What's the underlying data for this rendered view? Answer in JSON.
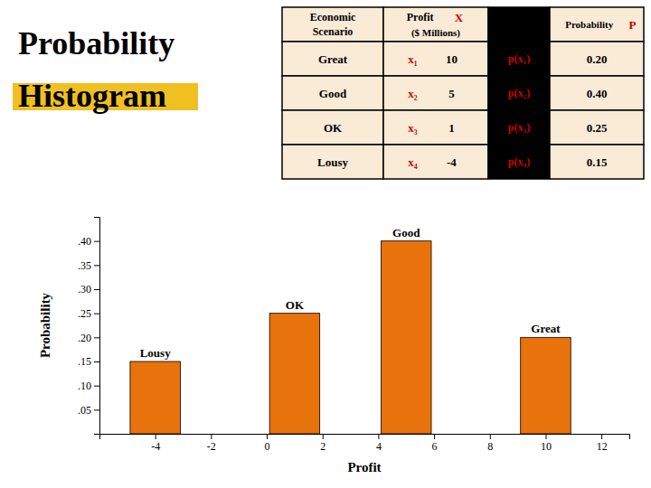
{
  "chart_data": {
    "type": "bar",
    "title": "Probability",
    "subtitle": "Histogram",
    "x": [
      -4,
      1,
      5,
      10
    ],
    "values": [
      0.15,
      0.25,
      0.4,
      0.2
    ],
    "annotations": [
      "Lousy",
      "OK",
      "Good",
      "Great"
    ],
    "color": "#e8720c",
    "xlabel": "Profit",
    "ylabel": "Probability",
    "xlim": [
      -6,
      13
    ],
    "ylim": [
      0,
      0.45
    ],
    "xticks": [
      -4,
      -2,
      0,
      2,
      4,
      6,
      8,
      10,
      12
    ],
    "yticks": [
      {
        "value": 0.05,
        "label": ".05"
      },
      {
        "value": 0.1,
        "label": ".10"
      },
      {
        "value": 0.15,
        "label": ".15"
      },
      {
        "value": 0.2,
        "label": ".20"
      },
      {
        "value": 0.25,
        "label": ".25"
      },
      {
        "value": 0.3,
        "label": ".30"
      },
      {
        "value": 0.35,
        "label": ".35"
      },
      {
        "value": 0.4,
        "label": ".40"
      }
    ],
    "grid": false,
    "table": {
      "header": {
        "scenario": [
          "Economic",
          "Scenario"
        ],
        "profit": [
          "Profit",
          "X",
          "($ Millions)"
        ],
        "probability": [
          "Probability",
          "P"
        ]
      },
      "scenarios": [
        "Great",
        "Good",
        "OK",
        "Lousy"
      ],
      "xi": [
        "x₁",
        "x₂",
        "x₃",
        "x₄"
      ],
      "profits": [
        "10",
        "5",
        "1",
        "-4"
      ],
      "pxi": [
        "p(x₁)",
        "p(x₂)",
        "p(x₃)",
        "p(x₄)"
      ],
      "probs": [
        "0.20",
        "0.40",
        "0.25",
        "0.15"
      ]
    }
  }
}
